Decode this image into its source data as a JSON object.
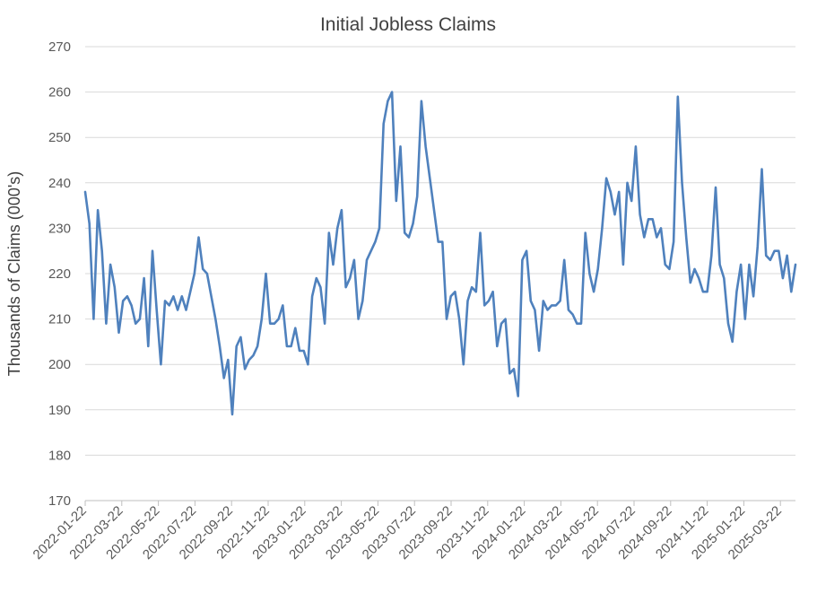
{
  "chart_data": {
    "type": "line",
    "title": "Initial Jobless Claims",
    "xlabel": "",
    "ylabel": "Thousands of Claims (000's)",
    "ylim": [
      170,
      270
    ],
    "y_ticks": [
      "170",
      "180",
      "190",
      "200",
      "210",
      "220",
      "230",
      "240",
      "250",
      "260",
      "270"
    ],
    "x_ticks": [
      "2022-01-22",
      "2022-03-22",
      "2022-05-22",
      "2022-07-22",
      "2022-09-22",
      "2022-11-22",
      "2023-01-22",
      "2023-03-22",
      "2023-05-22",
      "2023-07-22",
      "2023-09-22",
      "2023-11-22",
      "2024-01-22",
      "2024-03-22",
      "2024-05-22",
      "2024-07-22",
      "2024-09-22",
      "2024-11-22",
      "2025-01-22",
      "2025-03-22"
    ],
    "grid": "horizontal",
    "legend": "none",
    "series": [
      {
        "color": "#4f81bd",
        "values": [
          238,
          231,
          210,
          234,
          225,
          209,
          222,
          217,
          207,
          214,
          215,
          213,
          209,
          210,
          219,
          204,
          225,
          212,
          200,
          214,
          213,
          215,
          212,
          215,
          212,
          216,
          220,
          228,
          221,
          220,
          215,
          210,
          204,
          197,
          201,
          189,
          204,
          206,
          199,
          201,
          202,
          204,
          210,
          220,
          209,
          209,
          210,
          213,
          204,
          204,
          208,
          203,
          203,
          200,
          215,
          219,
          217,
          209,
          229,
          222,
          230,
          234,
          217,
          219,
          223,
          210,
          214,
          223,
          225,
          227,
          230,
          253,
          258,
          260,
          236,
          248,
          229,
          228,
          231,
          237,
          258,
          248,
          241,
          234,
          227,
          227,
          210,
          215,
          216,
          210,
          200,
          214,
          217,
          216,
          229,
          213,
          214,
          216,
          204,
          209,
          210,
          198,
          199,
          193,
          223,
          225,
          214,
          212,
          203,
          214,
          212,
          213,
          213,
          214,
          223,
          212,
          211,
          209,
          209,
          229,
          220,
          216,
          221,
          230,
          241,
          238,
          233,
          238,
          222,
          240,
          236,
          248,
          233,
          228,
          232,
          232,
          228,
          230,
          222,
          221,
          227,
          259,
          240,
          228,
          218,
          221,
          219,
          216,
          216,
          224,
          239,
          222,
          219,
          209,
          205,
          216,
          222,
          210,
          222,
          215,
          226,
          243,
          224,
          223,
          225,
          225,
          219,
          224,
          216,
          222
        ]
      }
    ]
  }
}
